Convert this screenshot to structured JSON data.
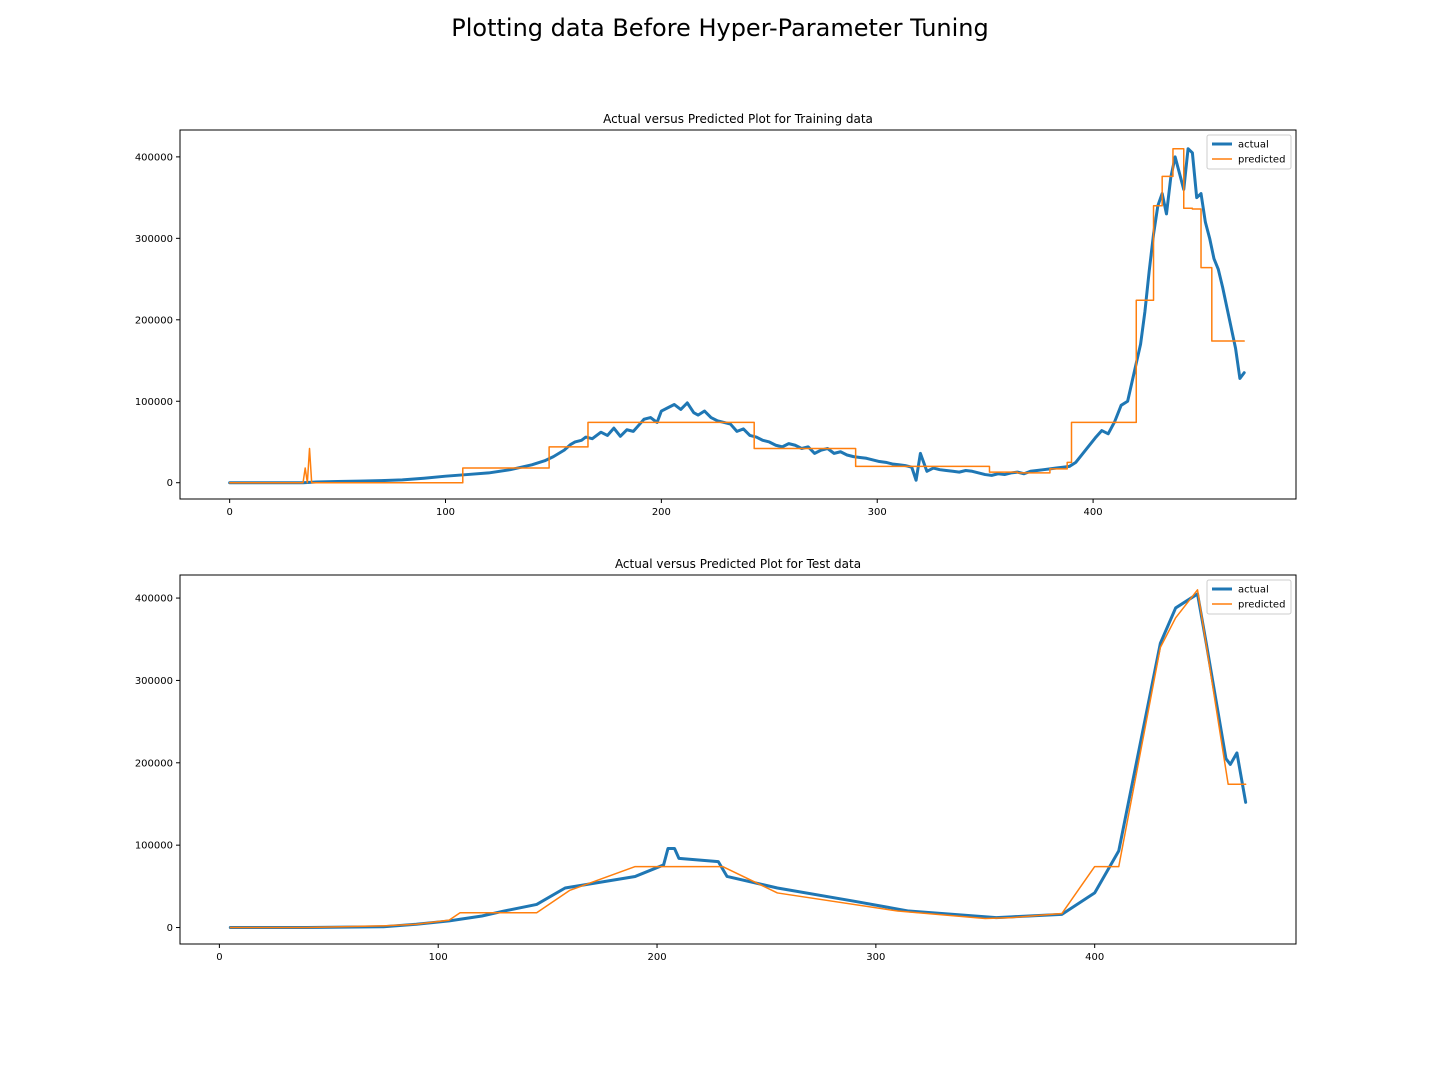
{
  "figure": {
    "suptitle": "Plotting data Before Hyper-Parameter Tuning"
  },
  "colors": {
    "actual": "#1f77b4",
    "predicted": "#ff7f0e"
  },
  "chart_data": [
    {
      "type": "line",
      "title": "Actual versus Predicted Plot for Training data",
      "xlabel": "",
      "ylabel": "",
      "xlim": [
        -23,
        494
      ],
      "ylim": [
        -20000,
        433000
      ],
      "xticks": [
        0,
        100,
        200,
        300,
        400
      ],
      "yticks": [
        0,
        100000,
        200000,
        300000,
        400000
      ],
      "grid": false,
      "legend_position": "top-right",
      "series": [
        {
          "name": "actual",
          "linewidth": 3,
          "x": [
            0,
            20,
            34,
            40,
            50,
            60,
            70,
            80,
            90,
            100,
            110,
            120,
            130,
            140,
            146,
            150,
            155,
            158,
            160,
            163,
            165,
            168,
            172,
            175,
            178,
            181,
            184,
            187,
            190,
            192,
            195,
            198,
            200,
            203,
            206,
            209,
            212,
            215,
            217,
            220,
            223,
            226,
            229,
            232,
            235,
            238,
            241,
            244,
            247,
            250,
            253,
            256,
            259,
            262,
            265,
            268,
            271,
            274,
            277,
            280,
            283,
            286,
            289,
            292,
            295,
            298,
            301,
            304,
            307,
            310,
            313,
            316,
            318,
            320,
            323,
            326,
            329,
            332,
            335,
            338,
            341,
            344,
            347,
            350,
            353,
            356,
            359,
            362,
            365,
            368,
            371,
            374,
            377,
            380,
            383,
            386,
            389,
            392,
            395,
            398,
            401,
            404,
            407,
            410,
            413,
            416,
            419,
            422,
            424,
            426,
            428,
            430,
            432,
            434,
            436,
            438,
            440,
            442,
            444,
            446,
            448,
            450,
            452,
            454,
            456,
            458,
            460,
            462,
            464,
            466,
            468,
            470
          ],
          "y": [
            0,
            0,
            0,
            800,
            1500,
            2000,
            2500,
            3500,
            5500,
            8000,
            10000,
            12000,
            16000,
            22000,
            27000,
            32000,
            40000,
            47000,
            50000,
            52000,
            56000,
            54000,
            62000,
            58000,
            67000,
            57000,
            65000,
            63000,
            72000,
            78000,
            80000,
            74000,
            88000,
            92000,
            96000,
            90000,
            98000,
            86000,
            83000,
            88000,
            80000,
            76000,
            74000,
            72000,
            63000,
            66000,
            58000,
            56000,
            52000,
            50000,
            46000,
            44000,
            48000,
            46000,
            42000,
            44000,
            36000,
            40000,
            42000,
            36000,
            38000,
            34000,
            32000,
            31000,
            30000,
            28000,
            26000,
            25000,
            23000,
            22000,
            21000,
            19000,
            3000,
            36000,
            14000,
            18000,
            16000,
            15000,
            14000,
            13000,
            15000,
            14000,
            12000,
            10000,
            9000,
            11000,
            10000,
            12000,
            13000,
            11000,
            14000,
            15000,
            16000,
            17000,
            18000,
            19000,
            20000,
            25000,
            35000,
            45000,
            55000,
            64000,
            60000,
            75000,
            95000,
            100000,
            135000,
            170000,
            210000,
            260000,
            305000,
            340000,
            355000,
            330000,
            375000,
            400000,
            380000,
            360000,
            410000,
            405000,
            350000,
            355000,
            320000,
            300000,
            275000,
            262000,
            240000,
            215000,
            190000,
            165000,
            128000,
            135000
          ]
        },
        {
          "name": "predicted",
          "linewidth": 1.5,
          "x": [
            0,
            34,
            35,
            36,
            37,
            38,
            108,
            108,
            148,
            148,
            166,
            166,
            243,
            243,
            290,
            290,
            352,
            352,
            365,
            365,
            380,
            380,
            388,
            388,
            390,
            390,
            420,
            420,
            428,
            428,
            432,
            432,
            437,
            437,
            442,
            442,
            446,
            446,
            450,
            450,
            455,
            455,
            461,
            461,
            470
          ],
          "y": [
            0,
            0,
            18000,
            0,
            42000,
            0,
            0,
            18000,
            18000,
            44000,
            44000,
            74000,
            74000,
            42000,
            42000,
            20000,
            20000,
            13000,
            13000,
            12000,
            12000,
            17000,
            17000,
            25000,
            25000,
            74000,
            74000,
            224000,
            224000,
            340000,
            340000,
            376000,
            376000,
            410000,
            410000,
            337000,
            337000,
            336000,
            336000,
            264000,
            264000,
            174000,
            174000,
            174000,
            174000
          ]
        }
      ]
    },
    {
      "type": "line",
      "title": "Actual versus Predicted Plot for Test data",
      "xlabel": "",
      "ylabel": "",
      "xlim": [
        -18,
        492
      ],
      "ylim": [
        -20000,
        428000
      ],
      "xticks": [
        0,
        100,
        200,
        300,
        400
      ],
      "yticks": [
        0,
        100000,
        200000,
        300000,
        400000
      ],
      "grid": false,
      "legend_position": "top-right",
      "series": [
        {
          "name": "actual",
          "linewidth": 3,
          "x": [
            5,
            40,
            75,
            90,
            105,
            110,
            120,
            130,
            145,
            158,
            190,
            203,
            205,
            208,
            210,
            228,
            232,
            255,
            290,
            315,
            355,
            362,
            385,
            400,
            411,
            430,
            437,
            447,
            451,
            460,
            462,
            465,
            469
          ],
          "y": [
            0,
            0,
            1000,
            4000,
            8000,
            10000,
            14000,
            20000,
            28000,
            48000,
            62000,
            76000,
            96000,
            96000,
            84000,
            80000,
            62000,
            48000,
            32000,
            20000,
            12000,
            13000,
            16000,
            42000,
            93000,
            345000,
            388000,
            405000,
            345000,
            205000,
            198000,
            212000,
            152000
          ],
          "marker_note": "solid thick line"
        },
        {
          "name": "predicted",
          "linewidth": 1.5,
          "x": [
            5,
            40,
            75,
            90,
            105,
            110,
            130,
            145,
            160,
            190,
            230,
            255,
            310,
            350,
            362,
            385,
            400,
            411,
            430,
            437,
            447,
            461,
            469
          ],
          "y": [
            0,
            0,
            2000,
            4000,
            9000,
            18000,
            18000,
            18000,
            45000,
            74000,
            74000,
            42000,
            20000,
            11000,
            12000,
            17000,
            74000,
            74000,
            340000,
            376000,
            410000,
            174000,
            174000
          ]
        }
      ]
    }
  ]
}
